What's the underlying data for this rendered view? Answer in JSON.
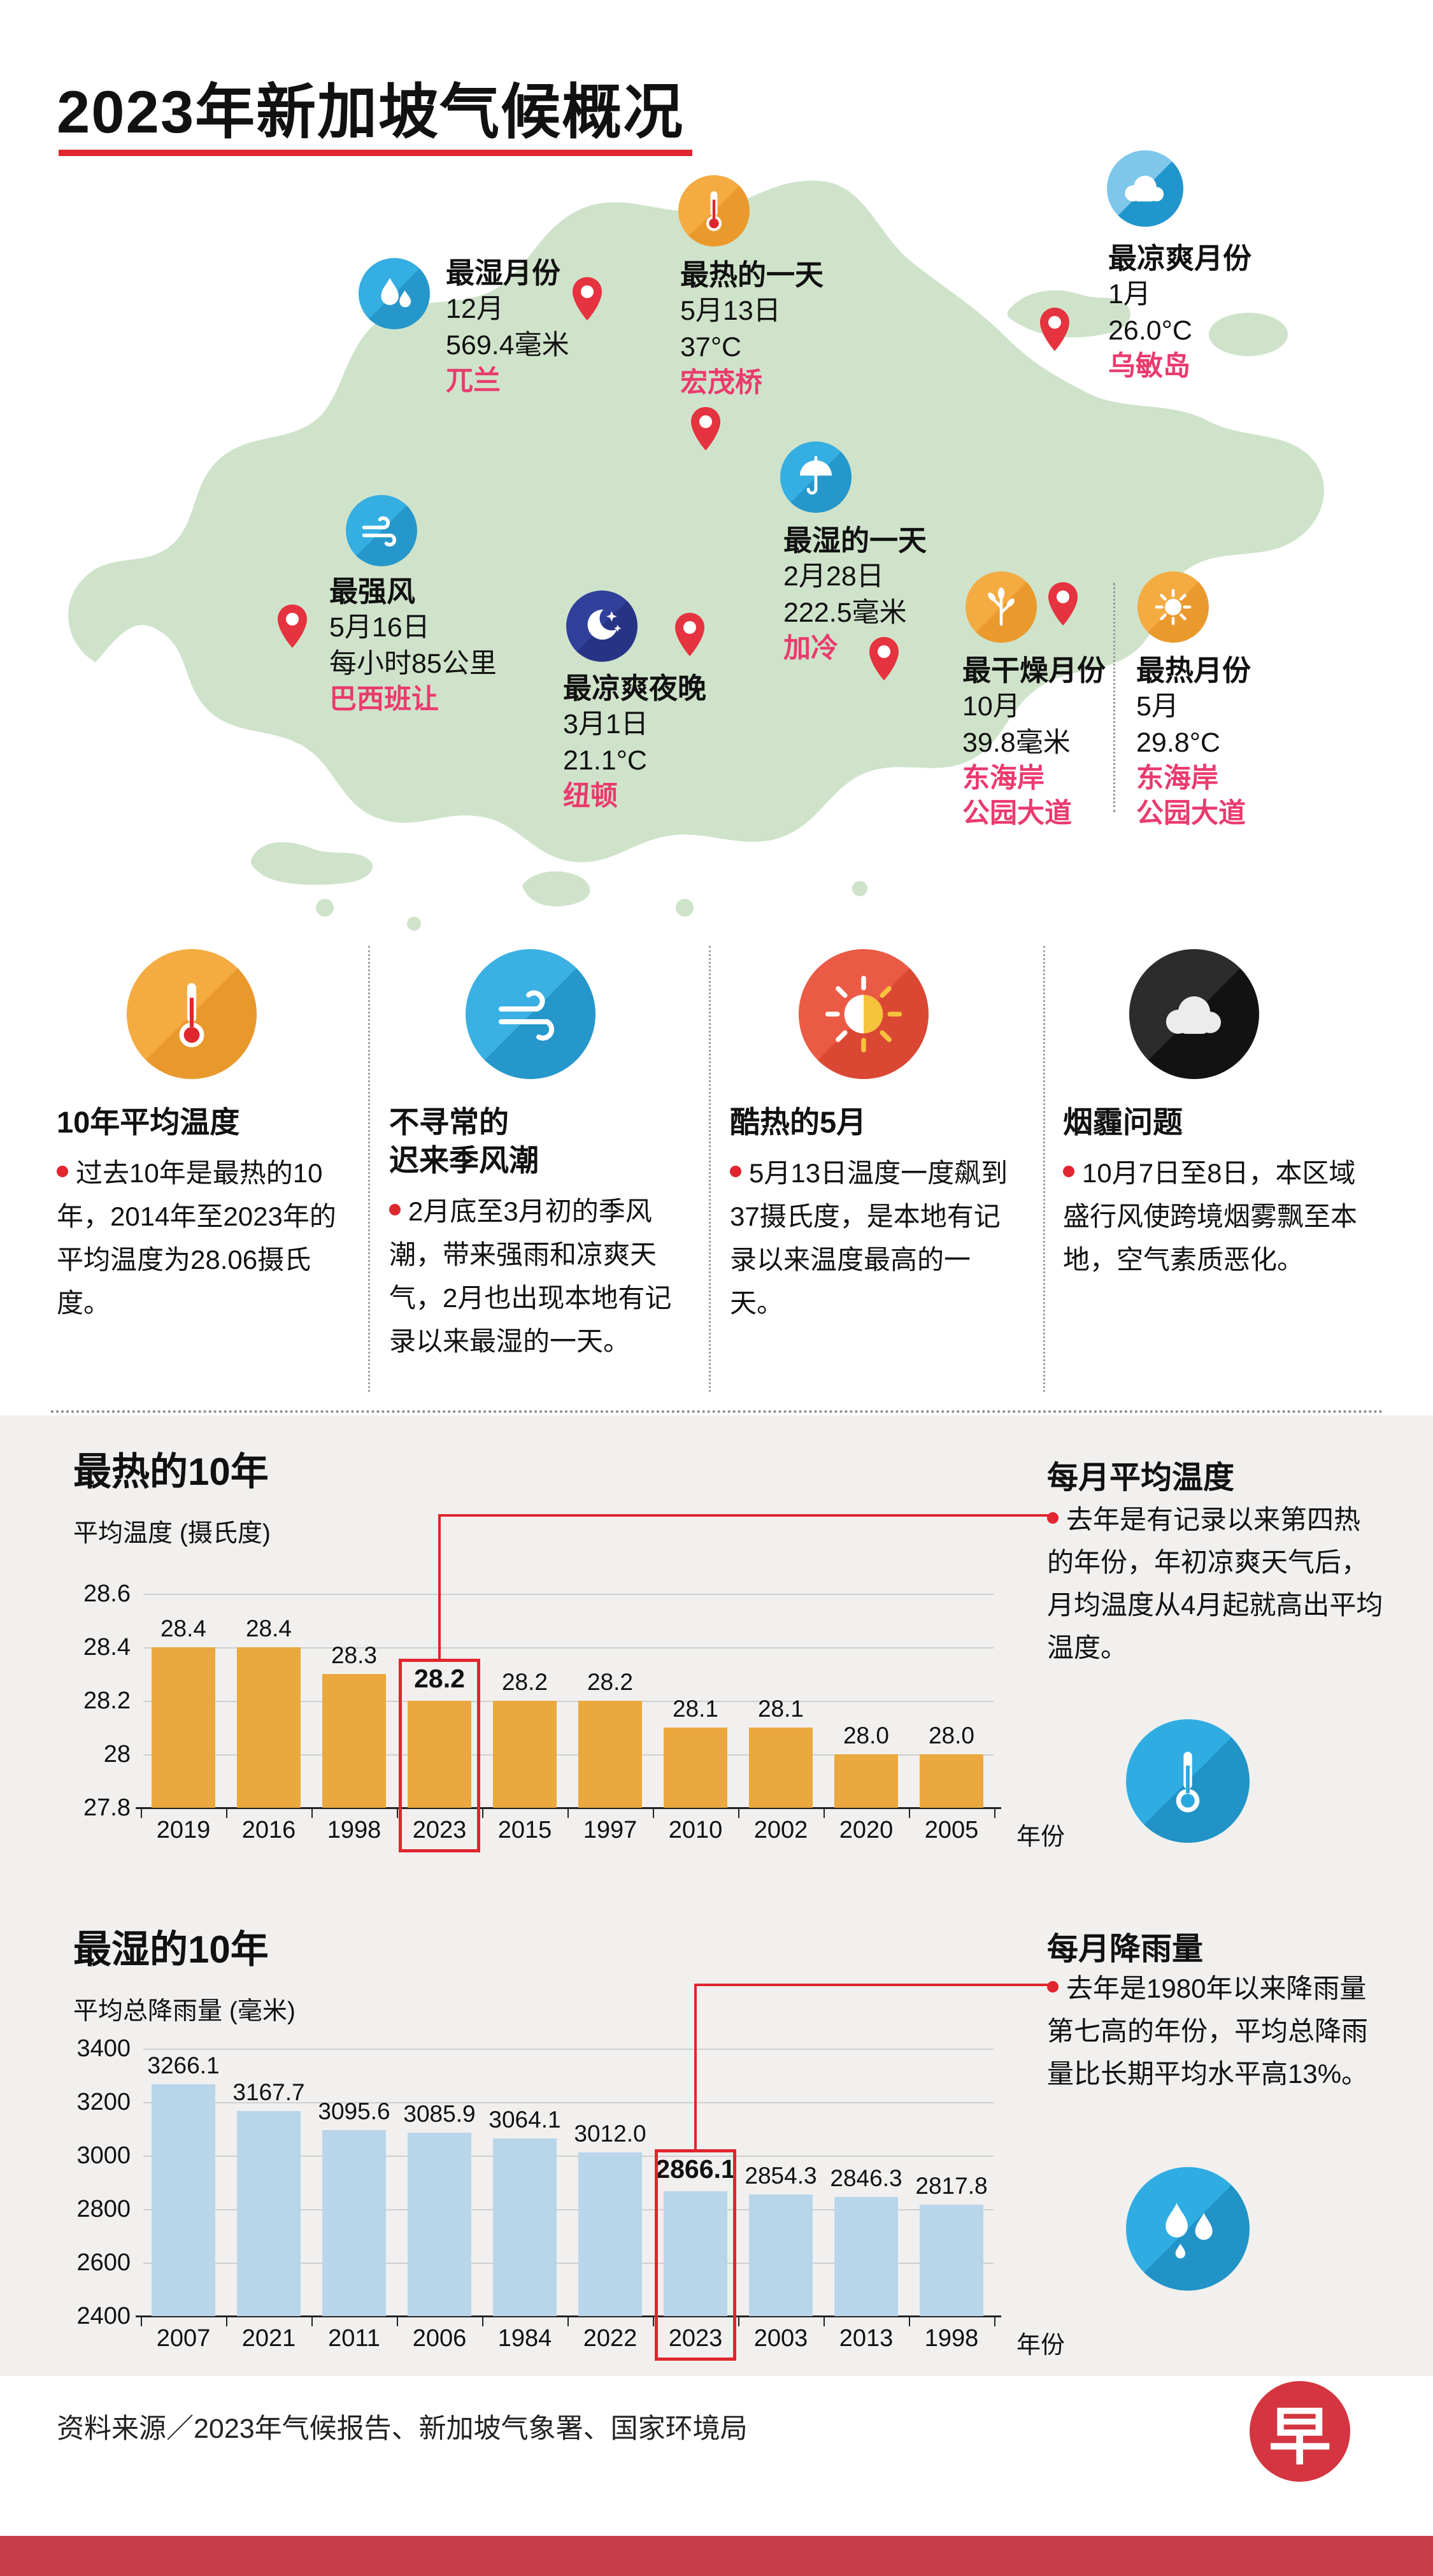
{
  "title": "2023年新加坡气候概况",
  "colors": {
    "accent_red": "#e0262e",
    "pink": "#ea3a6e",
    "map_green": "#cfe3cb",
    "bar_orange": "#eaa83e",
    "bar_blue": "#b9d5ea",
    "panel_gray": "#f1f0ee",
    "footer_bar": "#c63c49",
    "icon_blue": "#2aa9e0",
    "icon_orange": "#f2a43c",
    "icon_navy": "#2d3b8f",
    "icon_black": "#1c1c1c",
    "icon_red": "#e85a45"
  },
  "map": {
    "annotations": [
      {
        "heading": "最湿月份",
        "lines": [
          "12月",
          "569.4毫米"
        ],
        "location": "兀兰",
        "icon": "water-drops-icon"
      },
      {
        "heading": "最热的一天",
        "lines": [
          "5月13日",
          "37°C"
        ],
        "location": "宏茂桥",
        "icon": "thermometer-icon"
      },
      {
        "heading": "最凉爽月份",
        "lines": [
          "1月",
          "26.0°C"
        ],
        "location": "乌敏岛",
        "icon": "cloud-icon"
      },
      {
        "heading": "最强风",
        "lines": [
          "5月16日",
          "每小时85公里"
        ],
        "location": "巴西班让",
        "icon": "wind-icon"
      },
      {
        "heading": "最凉爽夜晚",
        "lines": [
          "3月1日",
          "21.1°C"
        ],
        "location": "纽顿",
        "icon": "moon-stars-icon"
      },
      {
        "heading": "最湿的一天",
        "lines": [
          "2月28日",
          "222.5毫米"
        ],
        "location": "加冷",
        "icon": "umbrella-rain-icon"
      },
      {
        "heading": "最干燥月份",
        "lines": [
          "10月",
          "39.8毫米"
        ],
        "location": "东海岸\n公园大道",
        "icon": "tree-icon"
      },
      {
        "heading": "最热月份",
        "lines": [
          "5月",
          "29.8°C"
        ],
        "location": "东海岸\n公园大道",
        "icon": "sun-icon"
      }
    ]
  },
  "highlights": [
    {
      "heading": "10年平均温度",
      "text": "过去10年是最热的10年，2014年至2023年的平均温度为28.06摄氏度。",
      "icon": "thermometer-icon"
    },
    {
      "heading": "不寻常的\n迟来季风潮",
      "text": "2月底至3月初的季风潮，带来强雨和凉爽天气，2月也出现本地有记录以来最湿的一天。",
      "icon": "wind-icon"
    },
    {
      "heading": "酷热的5月",
      "text": "5月13日温度一度飙到37摄氏度，是本地有记录以来温度最高的一天。",
      "icon": "sun-icon"
    },
    {
      "heading": "烟霾问题",
      "text": "10月7日至8日，本区域盛行风使跨境烟雾飘至本地，空气素质恶化。",
      "icon": "haze-cloud-icon"
    }
  ],
  "chart_data": [
    {
      "type": "bar",
      "title": "最热的10年",
      "ylabel": "平均温度 (摄氏度)",
      "xlabel": "年份",
      "categories": [
        "2019",
        "2016",
        "1998",
        "2023",
        "2015",
        "1997",
        "2010",
        "2002",
        "2020",
        "2005"
      ],
      "values": [
        28.4,
        28.4,
        28.3,
        28.2,
        28.2,
        28.2,
        28.1,
        28.1,
        28.0,
        28.0
      ],
      "value_labels": [
        "28.4",
        "28.4",
        "28.3",
        "28.2",
        "28.2",
        "28.2",
        "28.1",
        "28.1",
        "28.0",
        "28.0"
      ],
      "ylim": [
        27.8,
        28.6
      ],
      "yticks": [
        "28.6",
        "28.4",
        "28.2",
        "28",
        "27.8"
      ],
      "grid": true,
      "legend": "none",
      "highlight_index": 3,
      "highlight_year": "2023",
      "bar_color": "#eaa83e",
      "side_note": {
        "heading": "每月平均温度",
        "text": "去年是有记录以来第四热的年份，年初凉爽天气后，月均温度从4月起就高出平均温度。",
        "icon": "thermometer-icon"
      }
    },
    {
      "type": "bar",
      "title": "最湿的10年",
      "ylabel": "平均总降雨量 (毫米)",
      "xlabel": "年份",
      "categories": [
        "2007",
        "2021",
        "2011",
        "2006",
        "1984",
        "2022",
        "2023",
        "2003",
        "2013",
        "1998"
      ],
      "values": [
        3266.1,
        3167.7,
        3095.6,
        3085.9,
        3064.1,
        3012.0,
        2866.1,
        2854.3,
        2846.3,
        2817.8
      ],
      "value_labels": [
        "3266.1",
        "3167.7",
        "3095.6",
        "3085.9",
        "3064.1",
        "3012.0",
        "2866.1",
        "2854.3",
        "2846.3",
        "2817.8"
      ],
      "ylim": [
        2400,
        3400
      ],
      "yticks": [
        "3400",
        "3200",
        "3000",
        "2800",
        "2600",
        "2400"
      ],
      "grid": true,
      "legend": "none",
      "highlight_index": 6,
      "highlight_year": "2023",
      "bar_color": "#b9d5ea",
      "side_note": {
        "heading": "每月降雨量",
        "text": "去年是1980年以来降雨量第七高的年份，平均总降雨量比长期平均水平高13%。",
        "icon": "water-drops-icon"
      }
    }
  ],
  "footer": {
    "source": "资料来源／2023年气候报告、新加坡气象署、国家环境局",
    "logo_text": "早"
  }
}
